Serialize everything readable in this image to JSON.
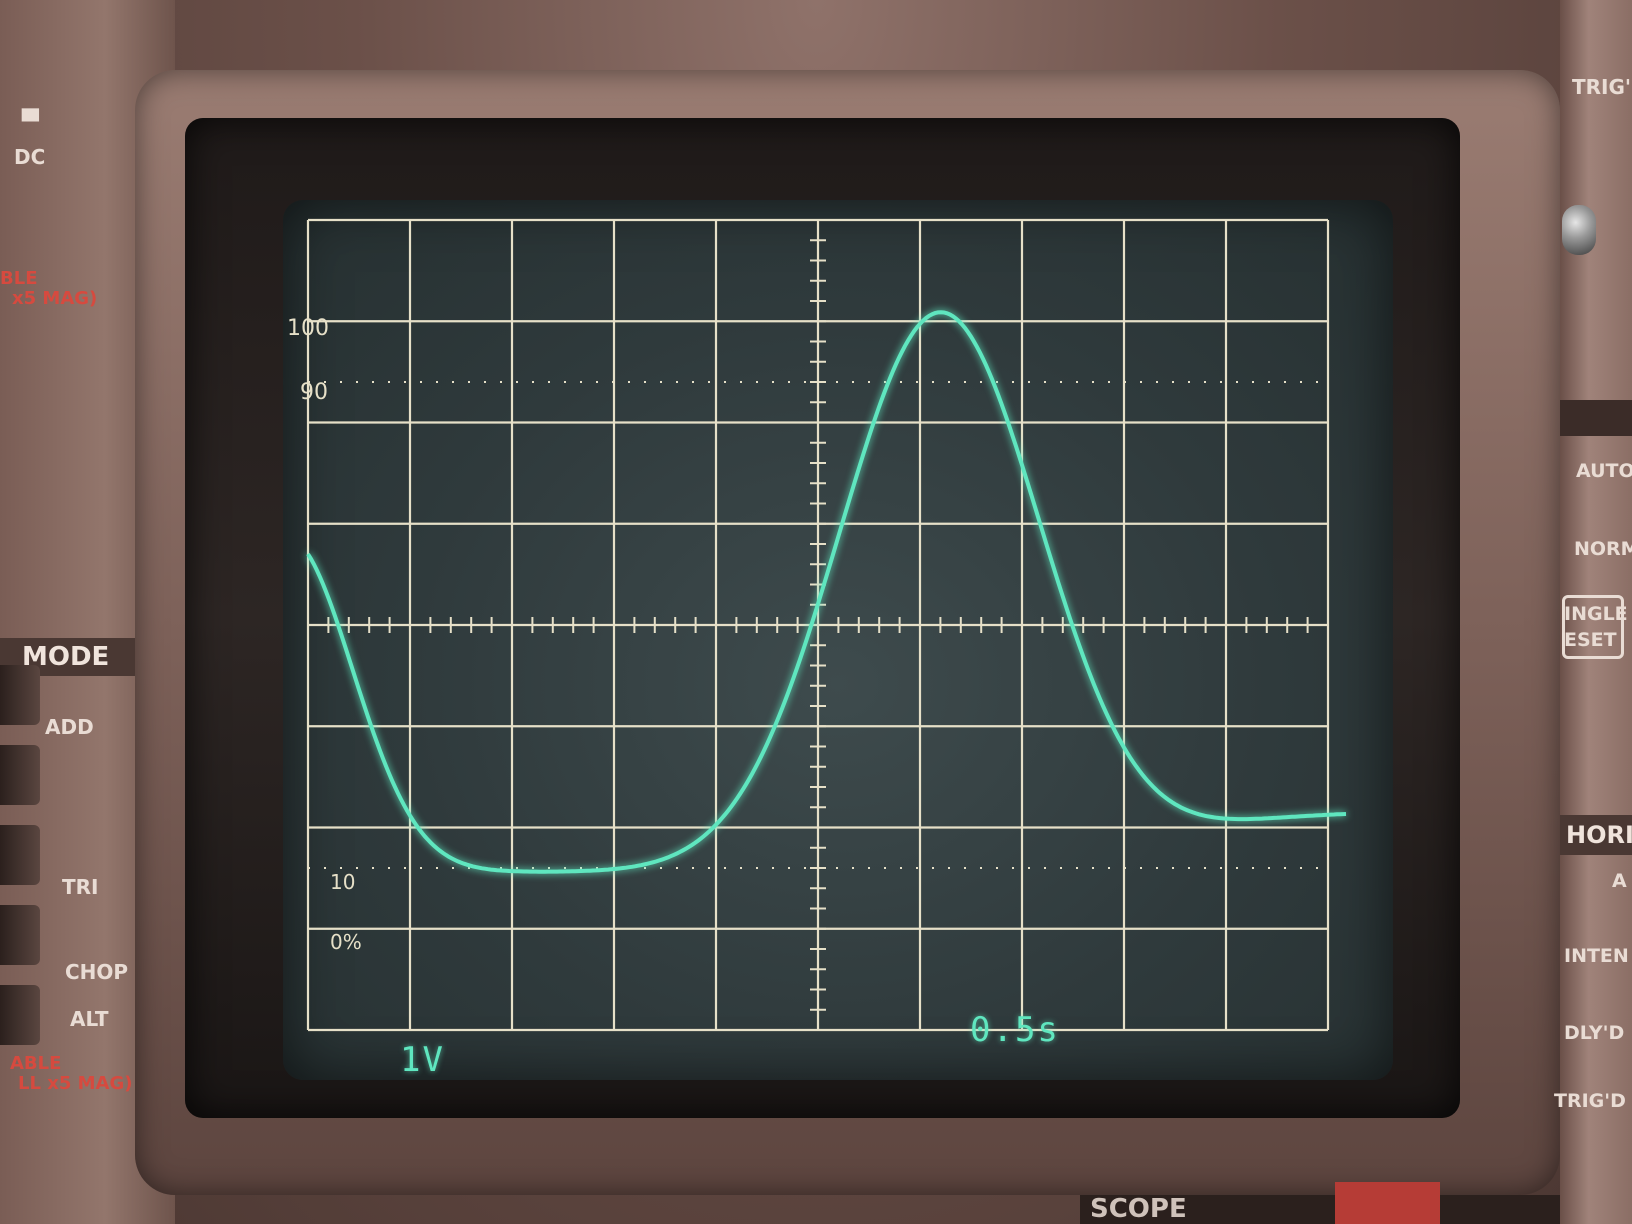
{
  "left_panel": {
    "dc_label": "DC",
    "variable_top": "BLE",
    "mag_top": "x5 MAG)",
    "mode_label": "MODE",
    "add_label": "ADD",
    "tri_label": "TRI",
    "chop_label": "CHOP",
    "alt_label": "ALT",
    "variable_bottom": "ABLE",
    "mag_bottom": "LL x5 MAG)"
  },
  "right_panel": {
    "trig_top": "TRIG'",
    "auto_label": "AUTO",
    "norm_label": "NORM",
    "single_label": "INGLE",
    "reset_label": "ESET",
    "horiz_label": "HORIZ",
    "a_label": "A",
    "inten_label": "INTEN",
    "dlyd_label": "DLY'D",
    "trigd_label": "TRIG'D"
  },
  "graticule": {
    "label_100": "100",
    "label_90": "90",
    "label_10": "10",
    "label_0": "0%"
  },
  "readouts": {
    "volts_per_div": "1V",
    "time_per_div": "0.5s"
  },
  "brand": {
    "text": "SCOPE"
  },
  "colors": {
    "trace": "#5fe6bf",
    "graticule": "#e6e0c8",
    "screen": "#35403f"
  }
}
